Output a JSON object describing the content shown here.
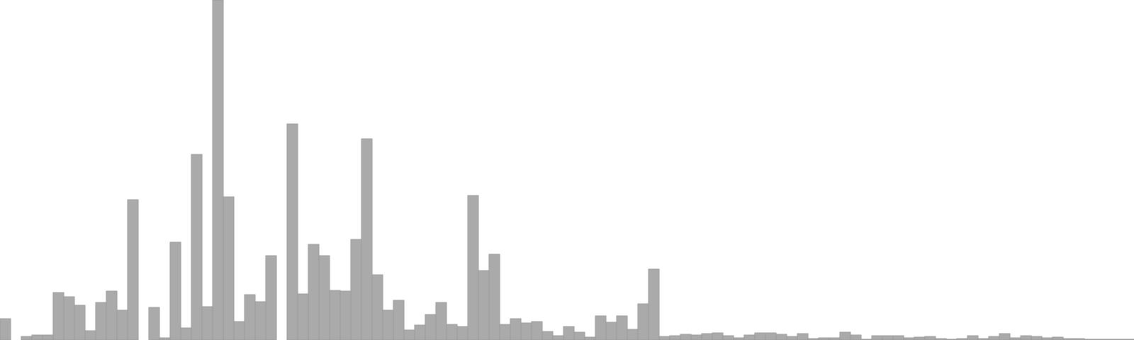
{
  "chart_data": {
    "type": "bar",
    "title": "",
    "xlabel": "",
    "ylabel": "",
    "ylim": [
      0,
      480
    ],
    "grid": false,
    "legend": "none",
    "bar_color": "#aaaaaa",
    "bar_edge_color": "#999999",
    "values": [
      30,
      0,
      5,
      7,
      7,
      67,
      61,
      49,
      13,
      53,
      69,
      42,
      198,
      0,
      46,
      3,
      138,
      17,
      262,
      47,
      480,
      202,
      26,
      64,
      54,
      119,
      0,
      305,
      65,
      135,
      119,
      70,
      69,
      142,
      284,
      92,
      42,
      56,
      14,
      21,
      36,
      53,
      22,
      19,
      204,
      98,
      121,
      22,
      30,
      24,
      26,
      12,
      6,
      19,
      11,
      4,
      34,
      25,
      34,
      15,
      51,
      100,
      5,
      6,
      8,
      7,
      9,
      10,
      6,
      3,
      7,
      10,
      10,
      8,
      5,
      9,
      2,
      3,
      3,
      11,
      7,
      1,
      6,
      6,
      6,
      3,
      4,
      5,
      2,
      1,
      2,
      6,
      2,
      5,
      9,
      3,
      6,
      5,
      3,
      4,
      2,
      2,
      1,
      1,
      1,
      1,
      1
    ]
  }
}
